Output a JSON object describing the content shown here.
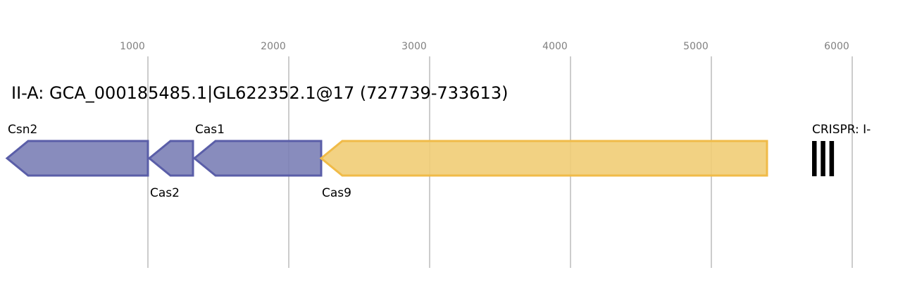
{
  "title": "II-A: GCA_000185485.1|GL622352.1@17 (727739-733613)",
  "axis": {
    "ticks": [
      1000,
      2000,
      3000,
      4000,
      5000,
      6000
    ],
    "range": [
      0,
      6325
    ]
  },
  "colors": {
    "cas_fill": "#7b7fb6",
    "cas_stroke": "#5a5ea8",
    "cas9_fill": "#f1cd76",
    "cas9_stroke": "#f0bb48",
    "crispr": "#000000"
  },
  "genes": [
    {
      "name": "Csn2",
      "start": 0,
      "end": 1000,
      "strand": "-",
      "label_pos": "above",
      "color": "cas"
    },
    {
      "name": "Cas2",
      "start": 1010,
      "end": 1320,
      "strand": "-",
      "label_pos": "below",
      "color": "cas"
    },
    {
      "name": "Cas1",
      "start": 1330,
      "end": 2230,
      "strand": "-",
      "label_pos": "above",
      "color": "cas"
    },
    {
      "name": "Cas9",
      "start": 2230,
      "end": 5395,
      "strand": "-",
      "label_pos": "below",
      "color": "cas9"
    }
  ],
  "crispr": {
    "label": "CRISPR: I-",
    "start": 5715,
    "end": 5875,
    "repeats": 3
  }
}
